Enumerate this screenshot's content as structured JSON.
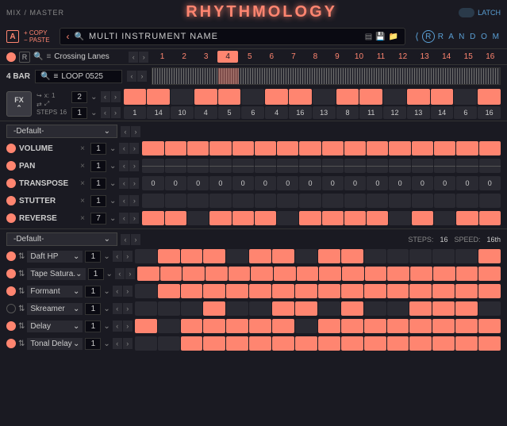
{
  "header": {
    "mix": "MIX / MASTER",
    "logo": "RHYTHMOLOGY",
    "latch": "LATCH"
  },
  "row2": {
    "a": "A",
    "copy": "+ COPY",
    "paste": "− PASTE",
    "name": "MULTI INSTRUMENT NAME",
    "random": "R A N D O M",
    "r": "R"
  },
  "lane": {
    "r": "R",
    "name": "Crossing Lanes",
    "sel": 4,
    "count": 16
  },
  "loop": {
    "bars": "4 BAR",
    "name": "LOOP 0525"
  },
  "fx": {
    "label": "FX",
    "x1": "x:",
    "x1v": "1",
    "n2": "2",
    "steps": "STEPS",
    "stepsn": "16",
    "n1": "1",
    "r1": [
      1,
      1,
      0,
      1,
      1,
      0,
      1,
      1,
      0,
      1,
      1,
      0,
      1,
      1,
      0,
      1
    ],
    "r2": [
      "1",
      "14",
      "10",
      "4",
      "5",
      "6",
      "4",
      "16",
      "13",
      "8",
      "11",
      "12",
      "13",
      "14",
      "6",
      "16"
    ]
  },
  "sec1": {
    "name": "-Default-",
    "rows": [
      {
        "n": "VOLUME",
        "v": "1",
        "type": "full",
        "cells": [
          1,
          1,
          1,
          1,
          1,
          1,
          1,
          1,
          1,
          1,
          1,
          1,
          1,
          1,
          1,
          1
        ]
      },
      {
        "n": "PAN",
        "v": "1",
        "type": "thin",
        "cells": [
          0,
          0,
          0,
          0,
          0,
          0,
          0,
          0,
          0,
          0,
          0,
          0,
          0,
          0,
          0,
          0
        ]
      },
      {
        "n": "TRANSPOSE",
        "v": "1",
        "type": "num",
        "cells": [
          "0",
          "0",
          "0",
          "0",
          "0",
          "0",
          "0",
          "0",
          "0",
          "0",
          "0",
          "0",
          "0",
          "0",
          "0",
          "0"
        ]
      },
      {
        "n": "STUTTER",
        "v": "1",
        "type": "full",
        "cells": [
          0,
          0,
          0,
          0,
          0,
          0,
          0,
          0,
          0,
          0,
          0,
          0,
          0,
          0,
          0,
          0
        ]
      },
      {
        "n": "REVERSE",
        "v": "7",
        "type": "full",
        "cells": [
          1,
          1,
          0,
          1,
          1,
          1,
          0,
          1,
          1,
          1,
          1,
          0,
          1,
          0,
          1,
          1
        ]
      }
    ]
  },
  "sec2": {
    "name": "-Default-",
    "steps_l": "STEPS:",
    "steps": "16",
    "speed_l": "SPEED:",
    "speed": "16th",
    "rows": [
      {
        "n": "Daft HP",
        "v": "1",
        "cells": [
          0,
          1,
          1,
          1,
          0,
          1,
          1,
          0,
          1,
          1,
          0,
          0,
          0,
          0,
          0,
          1
        ]
      },
      {
        "n": "Tape Satura.",
        "v": "1",
        "cells": [
          1,
          1,
          1,
          1,
          1,
          1,
          1,
          1,
          1,
          1,
          1,
          1,
          1,
          1,
          1,
          1
        ]
      },
      {
        "n": "Formant",
        "v": "1",
        "cells": [
          0,
          1,
          1,
          1,
          1,
          1,
          1,
          1,
          1,
          1,
          1,
          1,
          1,
          1,
          1,
          1
        ]
      },
      {
        "n": "Skreamer",
        "v": "1",
        "cells": [
          0,
          0,
          0,
          1,
          0,
          0,
          1,
          1,
          0,
          1,
          0,
          0,
          1,
          1,
          1,
          0
        ]
      },
      {
        "n": "Delay",
        "v": "1",
        "cells": [
          1,
          0,
          1,
          1,
          1,
          1,
          1,
          0,
          1,
          1,
          1,
          1,
          1,
          1,
          1,
          1
        ]
      },
      {
        "n": "Tonal Delay",
        "v": "1",
        "cells": [
          0,
          0,
          1,
          1,
          1,
          1,
          1,
          1,
          1,
          1,
          1,
          1,
          1,
          1,
          1,
          1
        ]
      }
    ]
  },
  "colors": {
    "accent": "#ff8570",
    "blue": "#5a9fd4",
    "bg": "#1a1a22",
    "cell_off": "#2a2a32"
  }
}
